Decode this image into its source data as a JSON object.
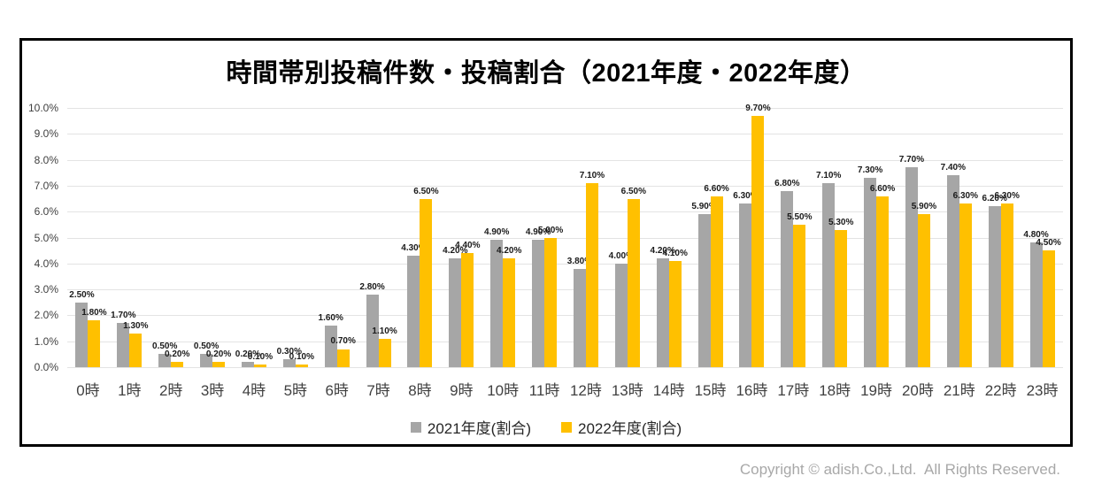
{
  "chart": {
    "title": "時間帯別投稿件数・投稿割合（2021年度・2022年度）"
  },
  "footer": {
    "copyright": "Copyright © adish.Co.,Ltd.  All Rights Reserved."
  },
  "colors": {
    "series_2021": "#A6A6A6",
    "series_2022": "#FFC000",
    "gridline": "#E3E3E3",
    "axis_text": "#404040",
    "border": "#000000"
  },
  "chart_data": {
    "type": "bar",
    "title": "時間帯別投稿件数・投稿割合（2021年度・2022年度）",
    "categories": [
      "0時",
      "1時",
      "2時",
      "3時",
      "4時",
      "5時",
      "6時",
      "7時",
      "8時",
      "9時",
      "10時",
      "11時",
      "12時",
      "13時",
      "14時",
      "15時",
      "16時",
      "17時",
      "18時",
      "19時",
      "20時",
      "21時",
      "22時",
      "23時"
    ],
    "series": [
      {
        "name": "2021年度(割合)",
        "color": "#A6A6A6",
        "values": [
          2.5,
          1.7,
          0.5,
          0.5,
          0.2,
          0.3,
          1.6,
          2.8,
          4.3,
          4.2,
          4.9,
          4.9,
          3.8,
          4.0,
          4.2,
          5.9,
          6.3,
          6.8,
          7.1,
          7.3,
          7.7,
          7.4,
          6.2,
          4.8
        ]
      },
      {
        "name": "2022年度(割合)",
        "color": "#FFC000",
        "values": [
          1.8,
          1.3,
          0.2,
          0.2,
          0.1,
          0.1,
          0.7,
          1.1,
          6.5,
          4.4,
          4.2,
          5.0,
          7.1,
          6.5,
          4.1,
          6.6,
          9.7,
          5.5,
          5.3,
          6.6,
          5.9,
          6.3,
          6.3,
          4.5
        ]
      }
    ],
    "xlabel": "",
    "ylabel": "",
    "ylim": [
      0,
      10
    ],
    "ytick_labels": [
      "0.0%",
      "1.0%",
      "2.0%",
      "3.0%",
      "4.0%",
      "5.0%",
      "6.0%",
      "7.0%",
      "8.0%",
      "9.0%",
      "10.0%"
    ],
    "grid": true,
    "legend_position": "bottom",
    "data_labels": "outside-end, format X.XX%"
  }
}
